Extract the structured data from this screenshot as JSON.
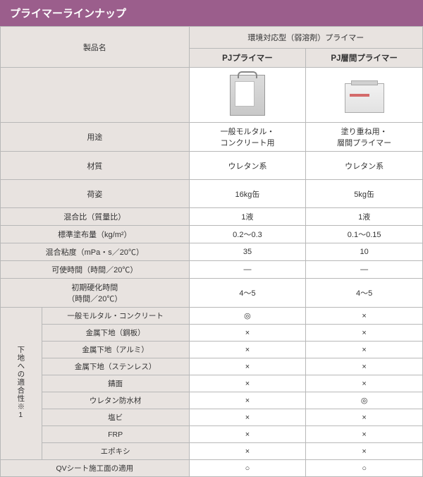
{
  "header": "プライマーラインナップ",
  "category_header": "環境対応型（弱溶剤）プライマー",
  "label_product_name": "製品名",
  "products": [
    {
      "name": "PJプライマー"
    },
    {
      "name": "PJ層間プライマー"
    }
  ],
  "rows_simple": [
    {
      "label": "用途",
      "h": "med",
      "v1": "一般モルタル・\nコンクリート用",
      "v2": "塗り重ね用・\n層間プライマー"
    },
    {
      "label": "材質",
      "h": "med",
      "v1": "ウレタン系",
      "v2": "ウレタン系"
    },
    {
      "label": "荷姿",
      "h": "med",
      "v1": "16kg缶",
      "v2": "5kg缶"
    },
    {
      "label": "混合比（質量比）",
      "h": "short",
      "v1": "1液",
      "v2": "1液"
    },
    {
      "label": "標準塗布量（kg/m²）",
      "h": "short",
      "v1": "0.2～0.3",
      "v2": "0.1～0.15"
    },
    {
      "label": "混合粘度（mPa・s／20℃）",
      "h": "short",
      "v1": "35",
      "v2": "10"
    },
    {
      "label": "可使時間（時間／20℃）",
      "h": "short",
      "v1": "—",
      "v2": "—"
    },
    {
      "label": "初期硬化時間\n（時間／20℃）",
      "h": "med",
      "v1": "4～5",
      "v2": "4～5"
    }
  ],
  "compat_group_label": "下地への適合性※1",
  "compat_rows": [
    {
      "label": "一般モルタル・コンクリート",
      "v1": "◎",
      "v2": "×"
    },
    {
      "label": "金属下地（鋼板）",
      "v1": "×",
      "v2": "×"
    },
    {
      "label": "金属下地（アルミ）",
      "v1": "×",
      "v2": "×"
    },
    {
      "label": "金属下地（ステンレス）",
      "v1": "×",
      "v2": "×"
    },
    {
      "label": "錆面",
      "v1": "×",
      "v2": "×"
    },
    {
      "label": "ウレタン防水材",
      "v1": "×",
      "v2": "◎"
    },
    {
      "label": "塩ビ",
      "v1": "×",
      "v2": "×"
    },
    {
      "label": "FRP",
      "v1": "×",
      "v2": "×"
    },
    {
      "label": "エポキシ",
      "v1": "×",
      "v2": "×"
    }
  ],
  "final_row": {
    "label": "QVシート施工面の適用",
    "v1": "○",
    "v2": "○"
  }
}
